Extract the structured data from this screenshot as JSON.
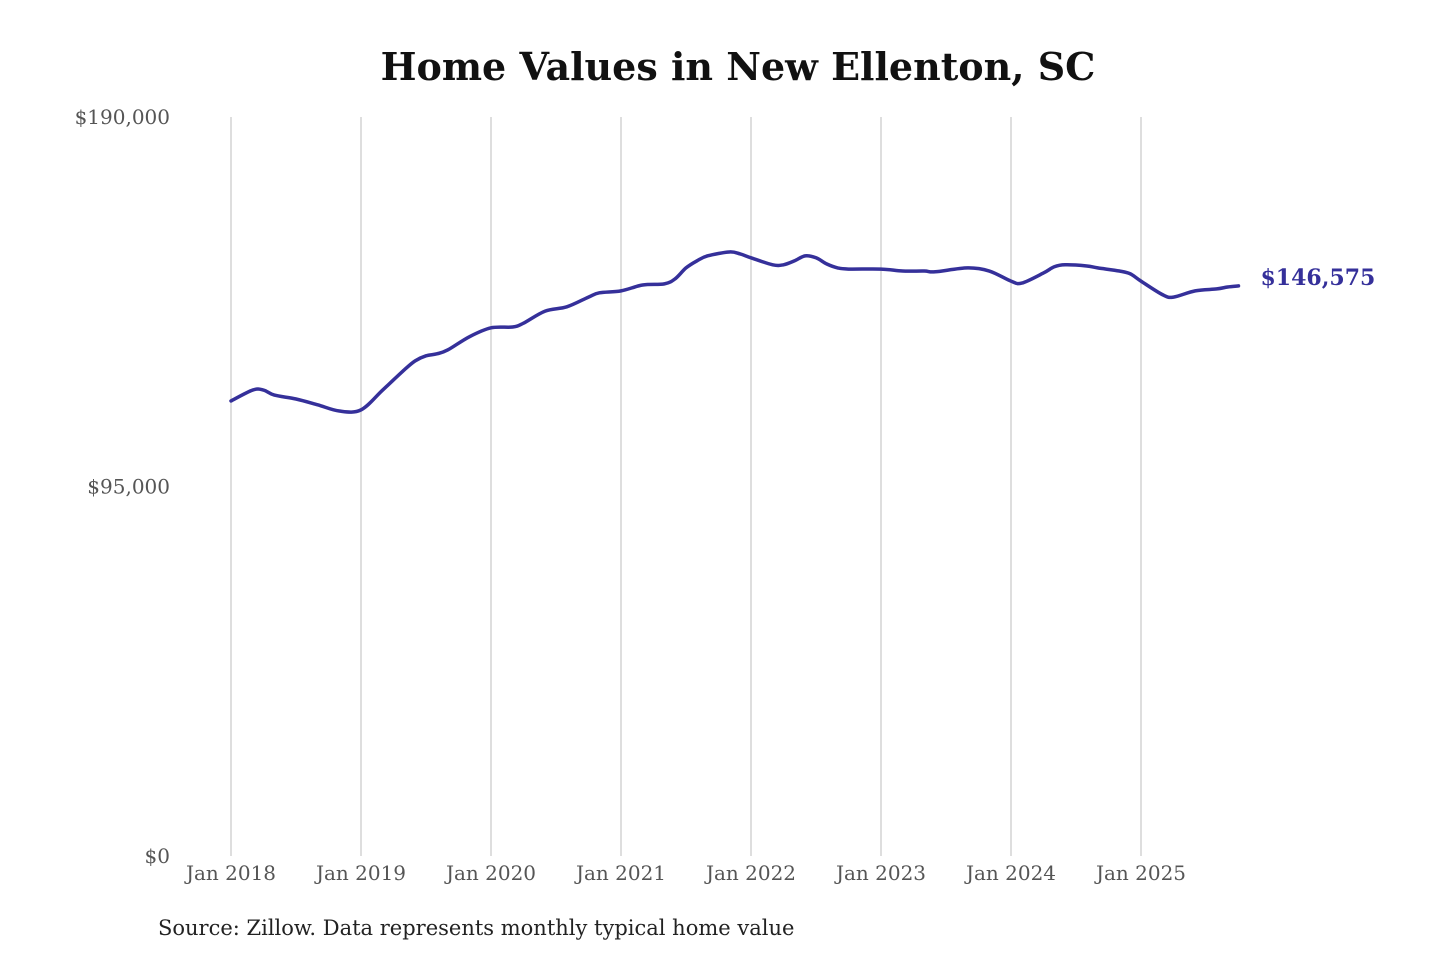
{
  "chart_data": {
    "type": "line",
    "title": "Home Values in New Ellenton, SC",
    "source": "Source: Zillow. Data represents monthly typical home value",
    "ylim": [
      0,
      190000
    ],
    "y_ticks": [
      0,
      95000,
      190000
    ],
    "y_tick_labels": [
      "$0",
      "$95,000",
      "$190,000"
    ],
    "x_ticks": [
      "2018-01",
      "2019-01",
      "2020-01",
      "2021-01",
      "2022-01",
      "2023-01",
      "2024-01",
      "2025-01"
    ],
    "x_tick_labels": [
      "Jan 2018",
      "Jan 2019",
      "Jan 2020",
      "Jan 2021",
      "Jan 2022",
      "Jan 2023",
      "Jan 2024",
      "Jan 2025"
    ],
    "grid": "vertical",
    "line_color": "#35309a",
    "end_label": "$146,575",
    "series": [
      {
        "points": [
          [
            "2018-01",
            117000
          ],
          [
            "2018-03",
            119800
          ],
          [
            "2018-04",
            119800
          ],
          [
            "2018-05",
            118500
          ],
          [
            "2018-07",
            117500
          ],
          [
            "2018-09",
            116000
          ],
          [
            "2018-11",
            114400
          ],
          [
            "2019-01",
            114700
          ],
          [
            "2019-03",
            119800
          ],
          [
            "2019-05",
            125000
          ],
          [
            "2019-06",
            127300
          ],
          [
            "2019-07",
            128600
          ],
          [
            "2019-08",
            129100
          ],
          [
            "2019-09",
            130100
          ],
          [
            "2019-11",
            133500
          ],
          [
            "2020-01",
            135800
          ],
          [
            "2020-03",
            136000
          ],
          [
            "2020-04",
            137000
          ],
          [
            "2020-06",
            140100
          ],
          [
            "2020-08",
            141200
          ],
          [
            "2020-10",
            143700
          ],
          [
            "2020-11",
            144800
          ],
          [
            "2021-01",
            145300
          ],
          [
            "2021-03",
            146800
          ],
          [
            "2021-05",
            147100
          ],
          [
            "2021-06",
            148400
          ],
          [
            "2021-07",
            151200
          ],
          [
            "2021-08",
            153000
          ],
          [
            "2021-09",
            154300
          ],
          [
            "2021-11",
            155300
          ],
          [
            "2021-12",
            154800
          ],
          [
            "2022-01",
            153800
          ],
          [
            "2022-03",
            152000
          ],
          [
            "2022-04",
            152000
          ],
          [
            "2022-05",
            153000
          ],
          [
            "2022-06",
            154300
          ],
          [
            "2022-07",
            153800
          ],
          [
            "2022-08",
            152200
          ],
          [
            "2022-09",
            151200
          ],
          [
            "2022-10",
            150900
          ],
          [
            "2023-01",
            150900
          ],
          [
            "2023-03",
            150400
          ],
          [
            "2023-05",
            150400
          ],
          [
            "2023-06",
            150200
          ],
          [
            "2023-09",
            151200
          ],
          [
            "2023-11",
            150400
          ],
          [
            "2024-01",
            147800
          ],
          [
            "2024-02",
            147300
          ],
          [
            "2024-04",
            149900
          ],
          [
            "2024-05",
            151500
          ],
          [
            "2024-06",
            152000
          ],
          [
            "2024-08",
            151700
          ],
          [
            "2024-09",
            151200
          ],
          [
            "2024-11",
            150400
          ],
          [
            "2024-12",
            149700
          ],
          [
            "2025-01",
            147800
          ],
          [
            "2025-03",
            144300
          ],
          [
            "2025-04",
            143700
          ],
          [
            "2025-06",
            145300
          ],
          [
            "2025-08",
            145800
          ],
          [
            "2025-09",
            146300
          ],
          [
            "2025-10",
            146575
          ]
        ]
      }
    ]
  }
}
